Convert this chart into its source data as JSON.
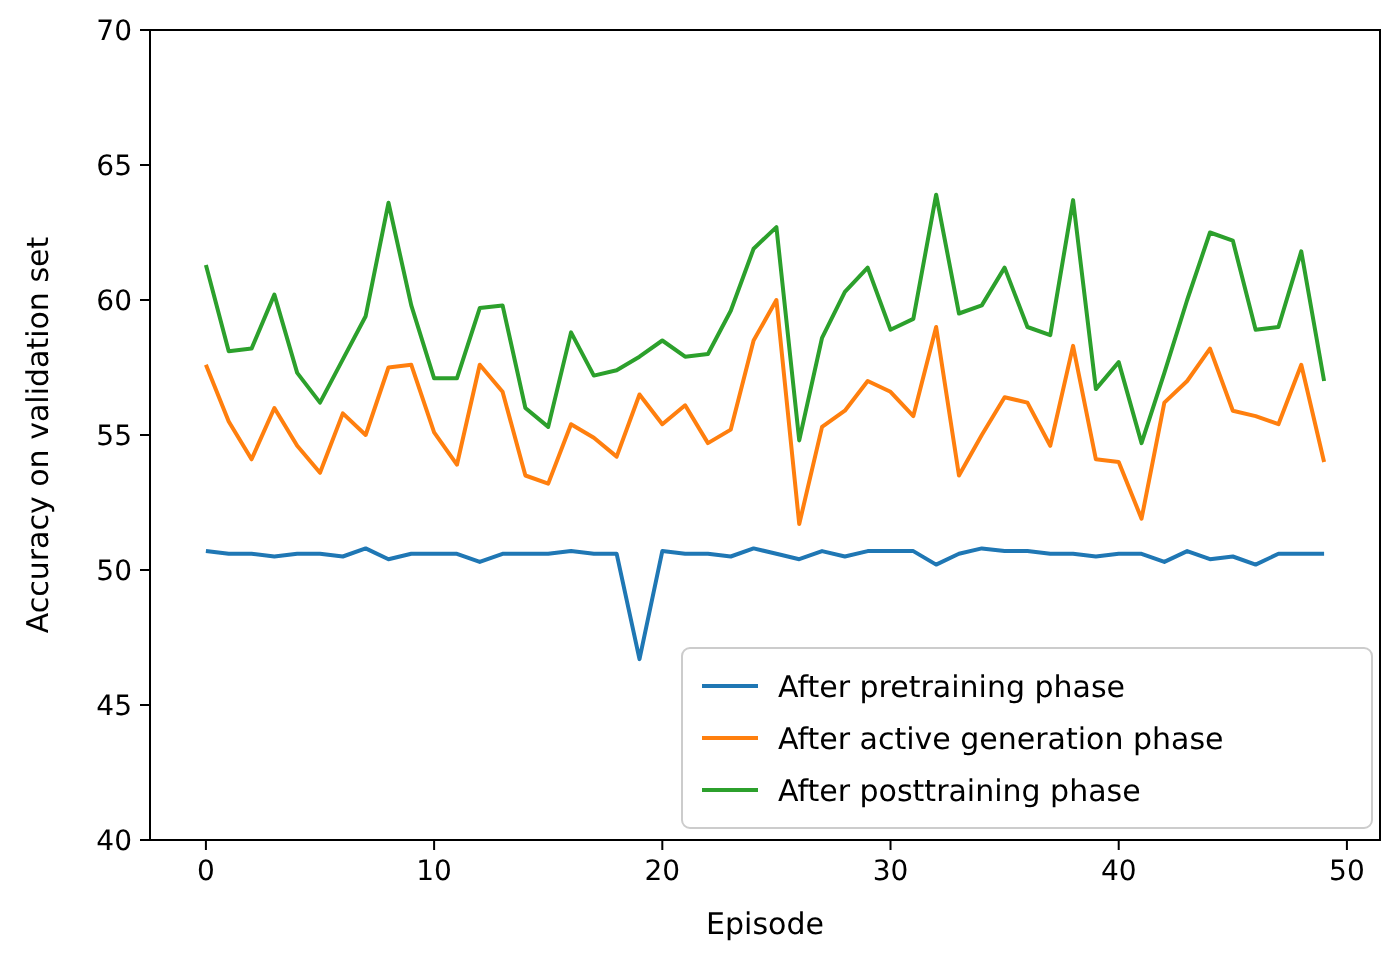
{
  "chart_data": {
    "type": "line",
    "xlabel": "Episode",
    "ylabel": "Accuracy on validation set",
    "x": [
      0,
      1,
      2,
      3,
      4,
      5,
      6,
      7,
      8,
      9,
      10,
      11,
      12,
      13,
      14,
      15,
      16,
      17,
      18,
      19,
      20,
      21,
      22,
      23,
      24,
      25,
      26,
      27,
      28,
      29,
      30,
      31,
      32,
      33,
      34,
      35,
      36,
      37,
      38,
      39,
      40,
      41,
      42,
      43,
      44,
      45,
      46,
      47,
      48,
      49
    ],
    "xlim": [
      -2.45,
      51.45
    ],
    "xticks": [
      0,
      10,
      20,
      30,
      40,
      50
    ],
    "ylim": [
      40,
      70
    ],
    "yticks": [
      40,
      45,
      50,
      55,
      60,
      65,
      70
    ],
    "legend": "bottom right",
    "grid": false,
    "series": [
      {
        "name": "After pretraining phase",
        "color": "#1f77b4",
        "values": [
          50.7,
          50.6,
          50.6,
          50.5,
          50.6,
          50.6,
          50.5,
          50.8,
          50.4,
          50.6,
          50.6,
          50.6,
          50.3,
          50.6,
          50.6,
          50.6,
          50.7,
          50.6,
          50.6,
          46.7,
          50.7,
          50.6,
          50.6,
          50.5,
          50.8,
          50.6,
          50.4,
          50.7,
          50.5,
          50.7,
          50.7,
          50.7,
          50.2,
          50.6,
          50.8,
          50.7,
          50.7,
          50.6,
          50.6,
          50.5,
          50.6,
          50.6,
          50.3,
          50.7,
          50.4,
          50.5,
          50.2,
          50.6,
          50.6,
          50.6
        ]
      },
      {
        "name": "After active generation phase",
        "color": "#ff7f0e",
        "values": [
          57.6,
          55.5,
          54.1,
          56.0,
          54.6,
          53.6,
          55.8,
          55.0,
          57.5,
          57.6,
          55.1,
          53.9,
          57.6,
          56.6,
          53.5,
          53.2,
          55.4,
          54.9,
          54.2,
          56.5,
          55.4,
          56.1,
          54.7,
          55.2,
          58.5,
          60.0,
          51.7,
          55.3,
          55.9,
          57.0,
          56.6,
          55.7,
          59.0,
          53.5,
          55.0,
          56.4,
          56.2,
          54.6,
          58.3,
          54.1,
          54.0,
          51.9,
          56.2,
          57.0,
          58.2,
          55.9,
          55.7,
          55.4,
          57.6,
          54.0
        ]
      },
      {
        "name": "After posttraining phase",
        "color": "#2ca02c",
        "values": [
          61.3,
          58.1,
          58.2,
          60.2,
          57.3,
          56.2,
          57.8,
          59.4,
          63.6,
          59.8,
          57.1,
          57.1,
          59.7,
          59.8,
          56.0,
          55.3,
          58.8,
          57.2,
          57.4,
          57.9,
          58.5,
          57.9,
          58.0,
          59.6,
          61.9,
          62.7,
          54.8,
          58.6,
          60.3,
          61.2,
          58.9,
          59.3,
          63.9,
          59.5,
          59.8,
          61.2,
          59.0,
          58.7,
          63.7,
          56.7,
          57.7,
          54.7,
          57.3,
          60.0,
          62.5,
          62.2,
          58.9,
          59.0,
          61.8,
          57.0
        ]
      }
    ]
  }
}
